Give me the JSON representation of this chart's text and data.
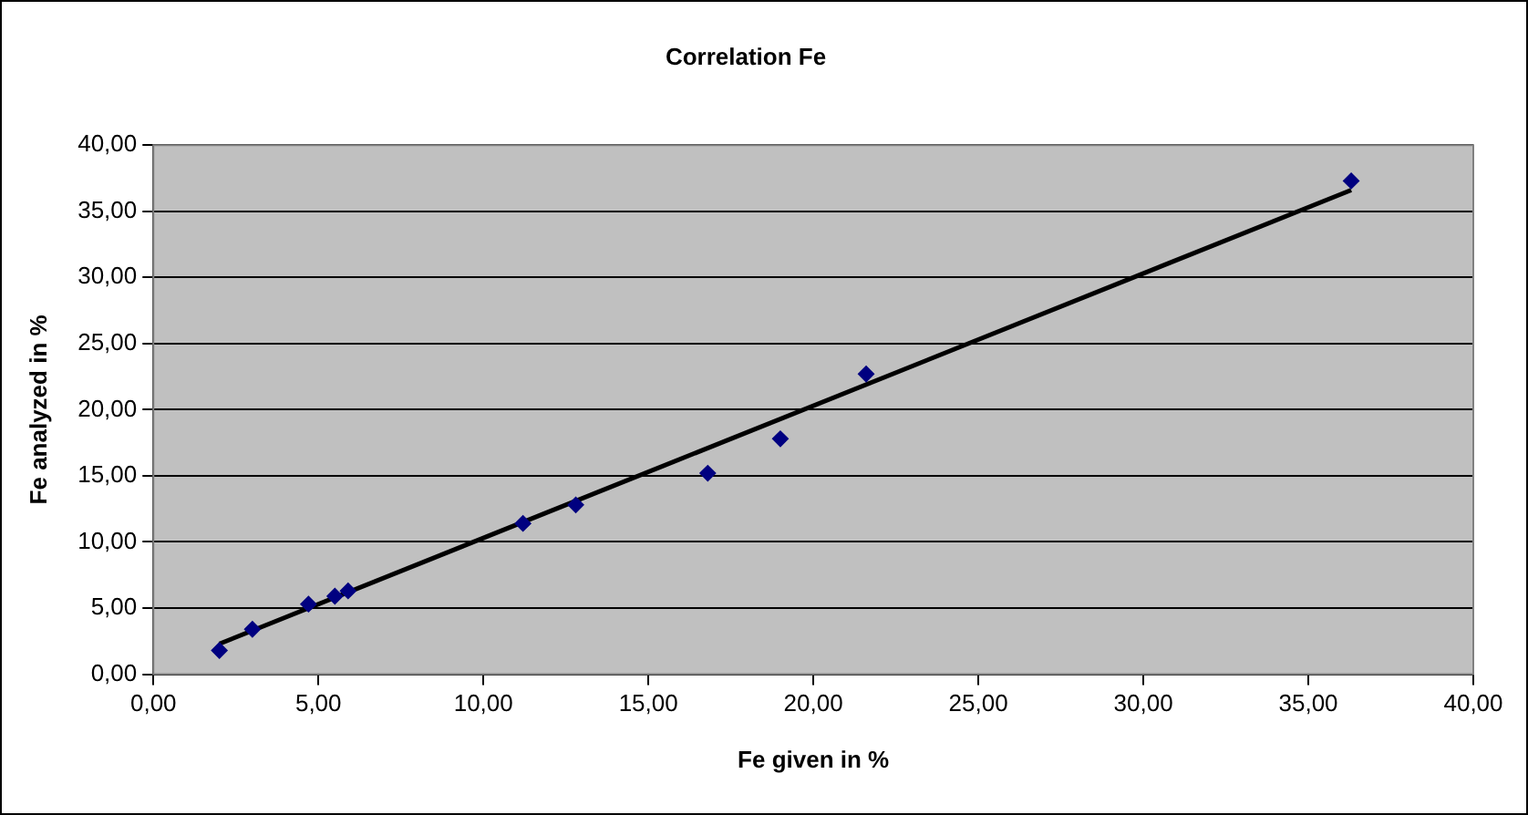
{
  "chart_data": {
    "type": "scatter",
    "title": "Correlation Fe",
    "xlabel": "Fe given in %",
    "ylabel": "Fe analyzed in %",
    "series": [
      {
        "color": "#000080",
        "marker": "diamond",
        "x": [
          2.0,
          3.0,
          4.7,
          5.5,
          5.9,
          11.2,
          12.8,
          16.8,
          19.0,
          21.6,
          36.3
        ],
        "values": [
          1.8,
          3.4,
          5.3,
          5.9,
          6.3,
          11.4,
          12.8,
          15.2,
          17.8,
          22.7,
          37.3
        ]
      },
      {
        "type": "line",
        "color": "#000000",
        "marker": "none",
        "x": [
          2.0,
          36.3
        ],
        "values": [
          2.3,
          36.6
        ]
      }
    ],
    "xlim": [
      0,
      40
    ],
    "ylim": [
      0,
      40
    ],
    "xticks": [
      {
        "value": 0,
        "label": "0,00"
      },
      {
        "value": 5,
        "label": "5,00"
      },
      {
        "value": 10,
        "label": "10,00"
      },
      {
        "value": 15,
        "label": "15,00"
      },
      {
        "value": 20,
        "label": "20,00"
      },
      {
        "value": 25,
        "label": "25,00"
      },
      {
        "value": 30,
        "label": "30,00"
      },
      {
        "value": 35,
        "label": "35,00"
      },
      {
        "value": 40,
        "label": "40,00"
      }
    ],
    "yticks": [
      {
        "value": 0,
        "label": "0,00"
      },
      {
        "value": 5,
        "label": "5,00"
      },
      {
        "value": 10,
        "label": "10,00"
      },
      {
        "value": 15,
        "label": "15,00"
      },
      {
        "value": 20,
        "label": "20,00"
      },
      {
        "value": 25,
        "label": "25,00"
      },
      {
        "value": 30,
        "label": "30,00"
      },
      {
        "value": 35,
        "label": "35,00"
      },
      {
        "value": 40,
        "label": "40,00"
      }
    ],
    "grid": "y",
    "legend": false
  }
}
